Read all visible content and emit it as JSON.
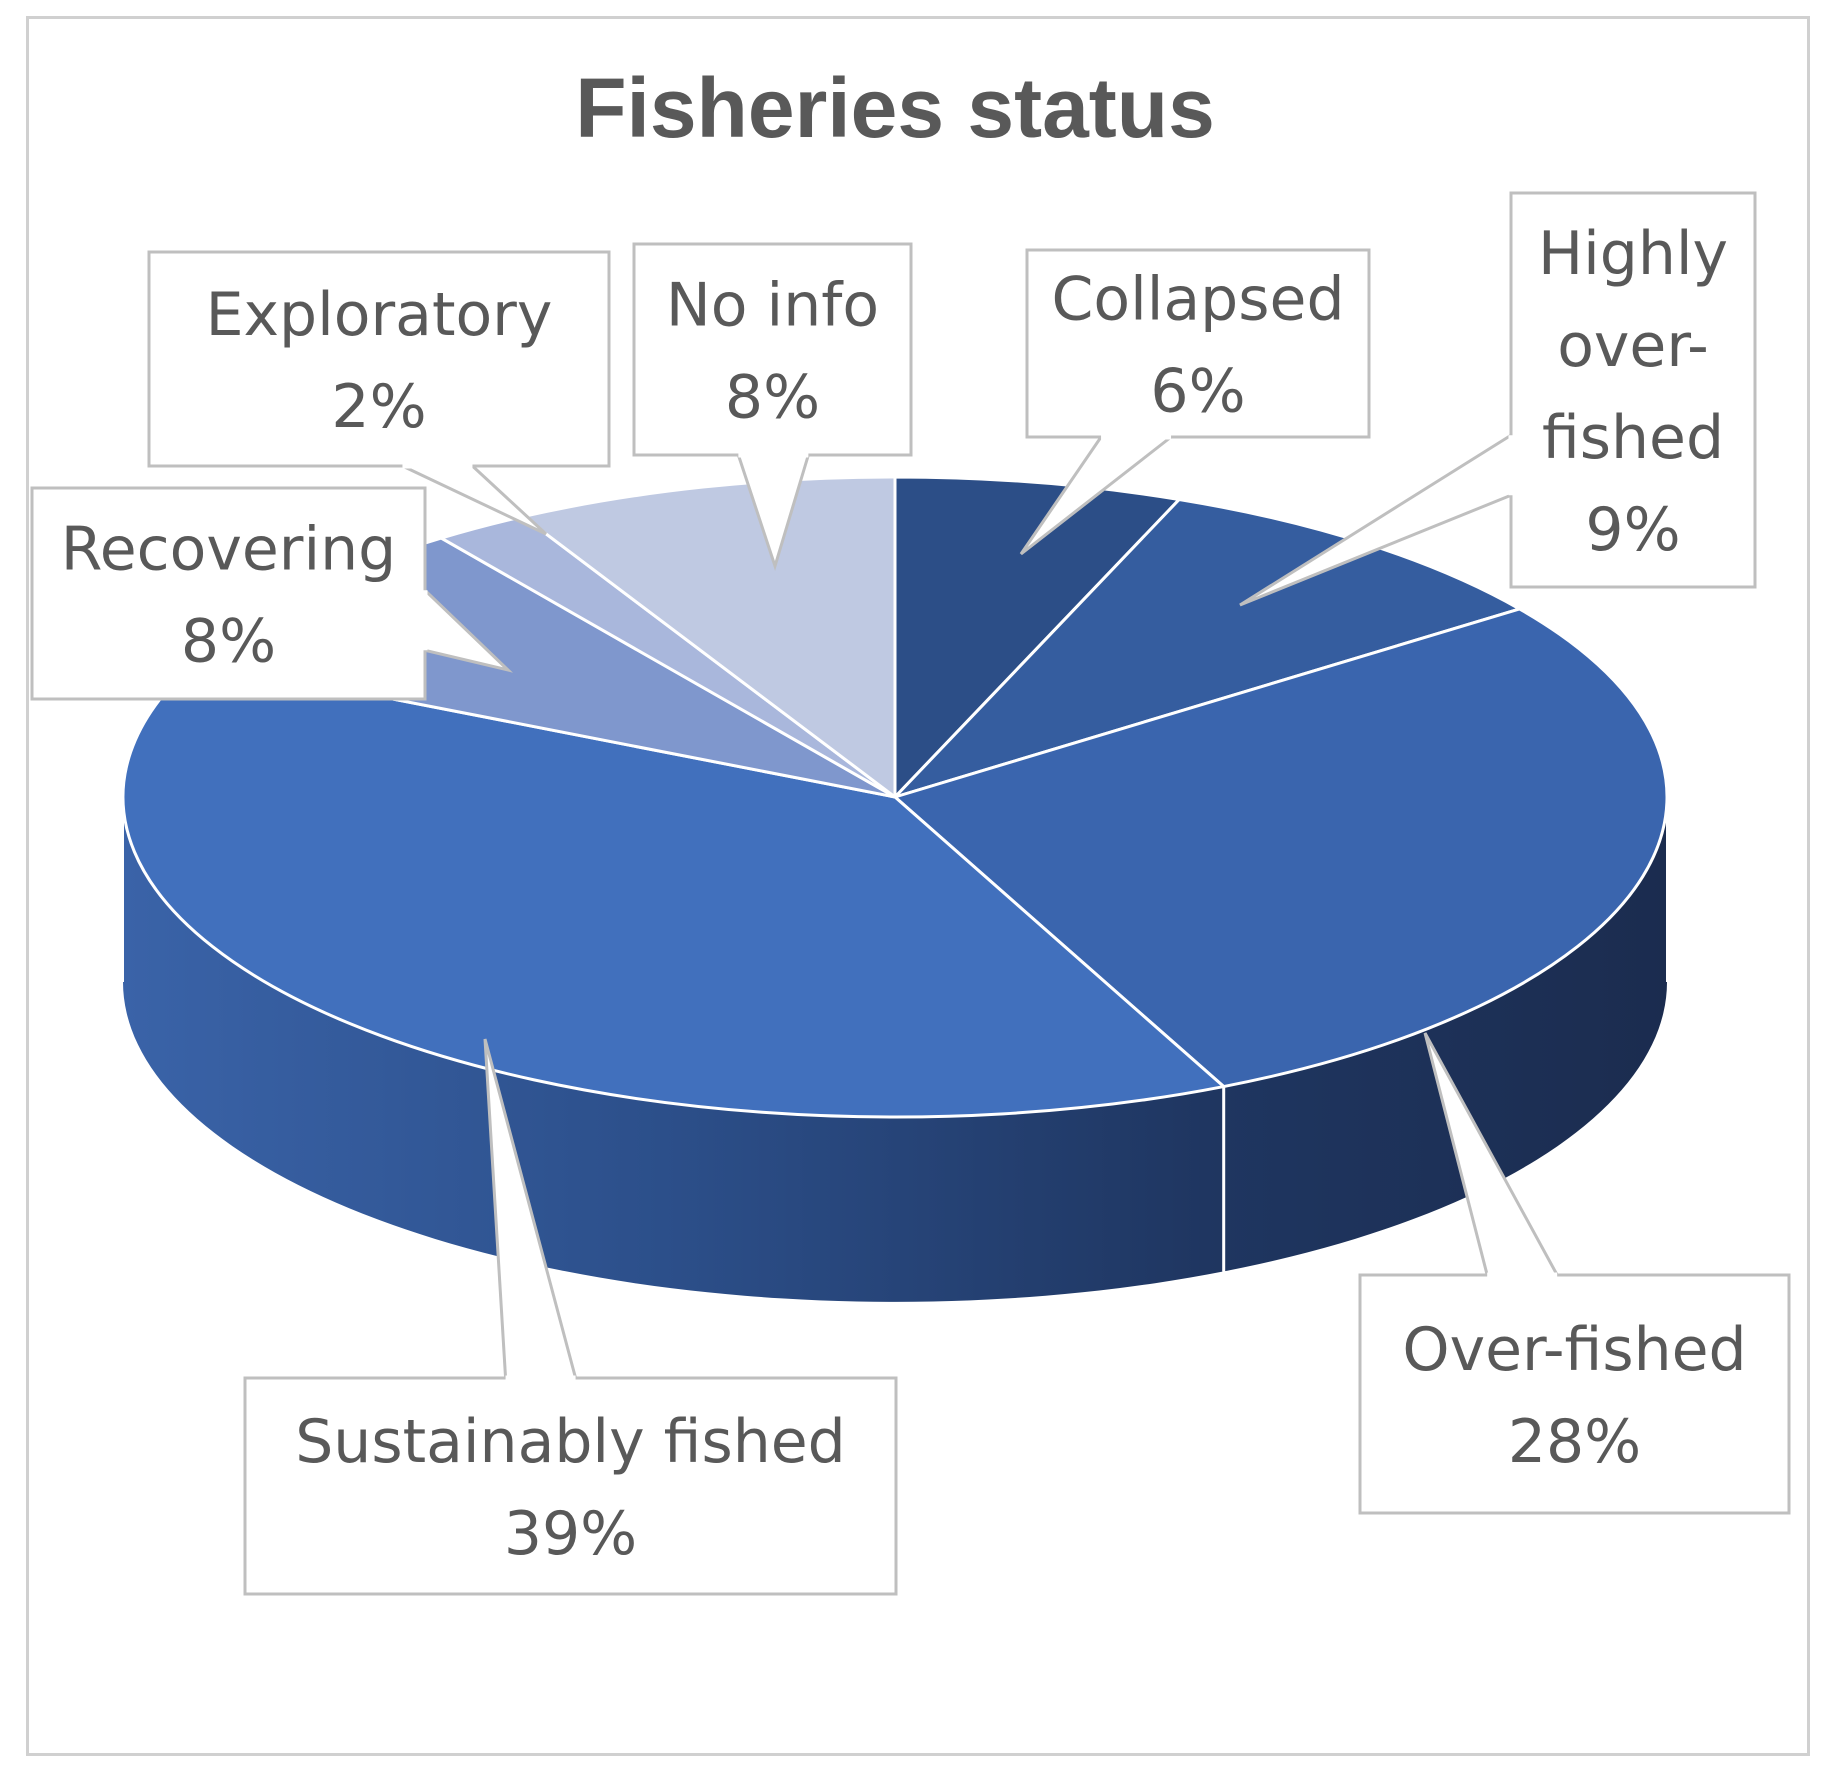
{
  "chart_data": {
    "type": "pie",
    "title": "Fisheries status",
    "slices": [
      {
        "label": "Collapsed",
        "value": 6,
        "value_label": "6%",
        "color": "#2c4e87",
        "label_lines": [
          "Collapsed",
          "6%"
        ]
      },
      {
        "label": "Highly over-fished",
        "value": 9,
        "value_label": "9%",
        "color": "#355d9f",
        "label_lines": [
          "Highly",
          "over-",
          "fished",
          "9%"
        ]
      },
      {
        "label": "Over-fished",
        "value": 28,
        "value_label": "28%",
        "color": "#3a65ae",
        "label_lines": [
          "Over-fished",
          "28%"
        ]
      },
      {
        "label": "Sustainably fished",
        "value": 39,
        "value_label": "39%",
        "color": "#4170bd",
        "label_lines": [
          "Sustainably fished",
          "39%"
        ]
      },
      {
        "label": "Recovering",
        "value": 8,
        "value_label": "8%",
        "color": "#7f97cd",
        "label_lines": [
          "Recovering",
          "8%"
        ]
      },
      {
        "label": "Exploratory",
        "value": 2,
        "value_label": "2%",
        "color": "#a9b7dc",
        "label_lines": [
          "Exploratory",
          "2%"
        ]
      },
      {
        "label": "No info",
        "value": 8,
        "value_label": "8%",
        "color": "#bfc9e2",
        "label_lines": [
          "No info",
          "8%"
        ]
      }
    ],
    "style": "3d-pie",
    "legend": "none",
    "data_labels": "callouts"
  }
}
